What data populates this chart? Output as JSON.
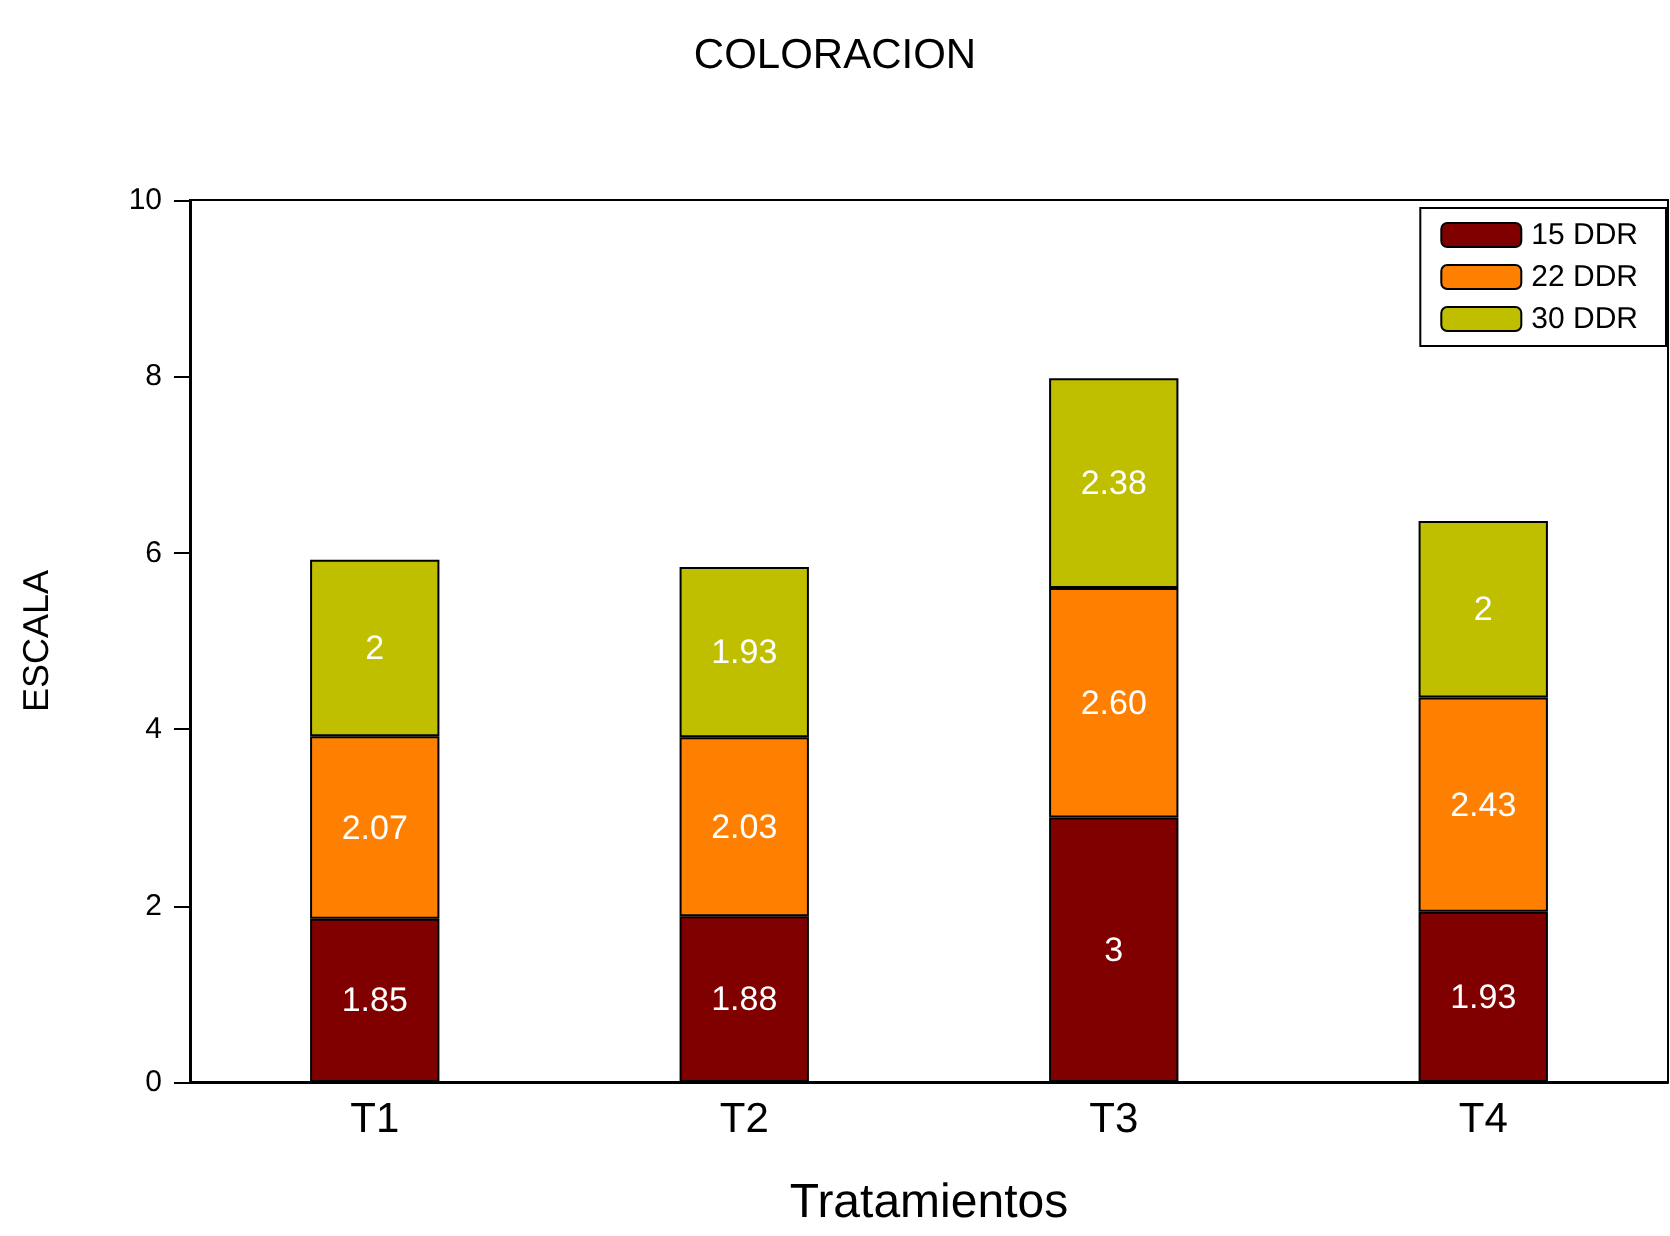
{
  "chart_data": {
    "type": "bar",
    "title": "COLORACION",
    "xlabel": "Tratamientos",
    "ylabel": "ESCALA",
    "categories": [
      "T1",
      "T2",
      "T3",
      "T4"
    ],
    "series": [
      {
        "name": "15 DDR",
        "color": "#800000",
        "values": [
          1.85,
          1.88,
          3,
          1.93
        ],
        "value_labels": [
          "1.85",
          "1.88",
          "3",
          "1.93"
        ]
      },
      {
        "name": "22 DDR",
        "color": "#ff8000",
        "values": [
          2.07,
          2.03,
          2.6,
          2.43
        ],
        "value_labels": [
          "2.07",
          "2.03",
          "2.60",
          "2.43"
        ]
      },
      {
        "name": "30 DDR",
        "color": "#bfbf00",
        "values": [
          2,
          1.93,
          2.38,
          2
        ],
        "value_labels": [
          "2",
          "1.93",
          "2.38",
          "2"
        ]
      }
    ],
    "stacked": true,
    "ylim": [
      0,
      10
    ],
    "yticks": [
      0,
      2,
      4,
      6,
      8,
      10
    ],
    "grid": false,
    "legend": "top right"
  }
}
